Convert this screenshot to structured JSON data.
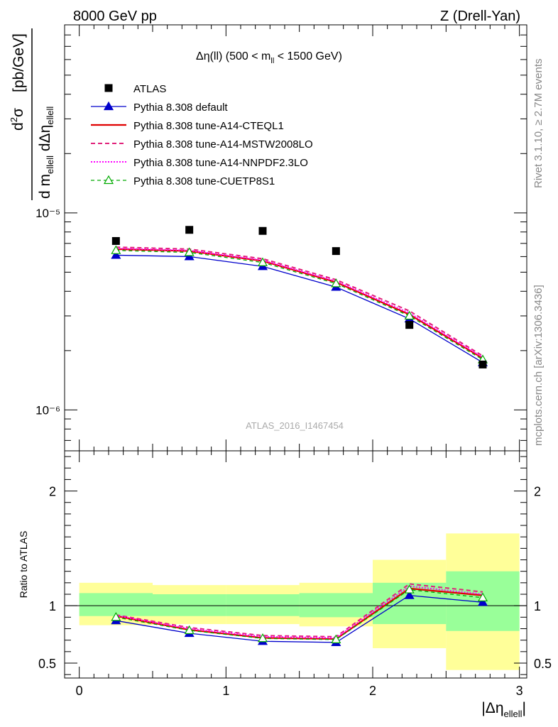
{
  "header": {
    "left": "8000 GeV pp",
    "right": "Z (Drell-Yan)"
  },
  "side": {
    "rivet": "Rivet 3.1.10, ≥ 2.7M events",
    "mcplots": "mcplots.cern.ch [arXiv:1306.3436]"
  },
  "watermark": "ATLAS_2016_I1467454",
  "colors": {
    "atlas": "#000000",
    "default": "#0000cc",
    "cteql1": "#e00000",
    "mstw": "#e0207a",
    "nnpdf": "#ff00ff",
    "cuetp8s1": "#00aa00",
    "band_outer": "#ffff99",
    "band_inner": "#99ff99"
  },
  "chart_data": [
    {
      "type": "scatter",
      "panel": "main",
      "title": "Δη(ll) (500 < m_ll < 1500 GeV)",
      "ylabel": "d²σ / d m_ellell dΔη_ellell [pb/GeV]",
      "yscale": "log",
      "ylim": [
        6.2e-07,
        9e-05
      ],
      "xlim": [
        -0.1,
        3.05
      ],
      "ytick_labels": [
        "10⁻⁵",
        "10⁻⁶"
      ],
      "legend_position": "top-left",
      "bins": [
        [
          0,
          0.5
        ],
        [
          0.5,
          1.0
        ],
        [
          1.0,
          1.5
        ],
        [
          1.5,
          2.0
        ],
        [
          2.0,
          2.5
        ],
        [
          2.5,
          3.0
        ]
      ],
      "x": [
        0.25,
        0.75,
        1.25,
        1.75,
        2.25,
        2.75
      ],
      "series": [
        {
          "name": "ATLAS",
          "key": "atlas",
          "values": [
            7.2e-06,
            8.2e-06,
            8.1e-06,
            6.4e-06,
            2.7e-06,
            1.7e-06
          ]
        },
        {
          "name": "Pythia 8.308 default",
          "key": "default",
          "values": [
            6.1e-06,
            6e-06,
            5.35e-06,
            4.2e-06,
            2.9e-06,
            1.74e-06
          ]
        },
        {
          "name": "Pythia 8.308 tune-A14-CTEQL1",
          "key": "cteql1",
          "values": [
            6.55e-06,
            6.4e-06,
            5.7e-06,
            4.45e-06,
            3.05e-06,
            1.83e-06
          ]
        },
        {
          "name": "Pythia 8.308 tune-A14-MSTW2008LO",
          "key": "mstw",
          "values": [
            6.7e-06,
            6.55e-06,
            5.85e-06,
            4.58e-06,
            3.18e-06,
            1.88e-06
          ]
        },
        {
          "name": "Pythia 8.308 tune-A14-NNPDF2.3LO",
          "key": "nnpdf",
          "values": [
            6.6e-06,
            6.45e-06,
            5.75e-06,
            4.5e-06,
            3.1e-06,
            1.85e-06
          ]
        },
        {
          "name": "Pythia 8.308 tune-CUETP8S1",
          "key": "cuetp8s1",
          "values": [
            6.45e-06,
            6.3e-06,
            5.6e-06,
            4.38e-06,
            3e-06,
            1.8e-06
          ]
        }
      ]
    },
    {
      "type": "line",
      "panel": "ratio",
      "ylabel": "Ratio to ATLAS",
      "xlabel": "|Δη_ellell|",
      "ylim": [
        0.37,
        2.35
      ],
      "xlim": [
        -0.1,
        3.05
      ],
      "xticks": [
        0,
        1,
        2,
        3
      ],
      "yticks": [
        0.5,
        1,
        2
      ],
      "ytick_labels": [
        "0.5",
        "1",
        "2"
      ],
      "band_outer": [
        [
          0.83,
          1.2
        ],
        [
          0.84,
          1.18
        ],
        [
          0.84,
          1.18
        ],
        [
          0.82,
          1.2
        ],
        [
          0.63,
          1.4
        ],
        [
          0.44,
          1.63
        ]
      ],
      "band_inner": [
        [
          0.91,
          1.11
        ],
        [
          0.91,
          1.1
        ],
        [
          0.91,
          1.1
        ],
        [
          0.9,
          1.11
        ],
        [
          0.84,
          1.2
        ],
        [
          0.78,
          1.3
        ]
      ],
      "x": [
        0.25,
        0.75,
        1.25,
        1.75,
        2.25,
        2.75
      ],
      "series": [
        {
          "key": "default",
          "values": [
            0.87,
            0.76,
            0.69,
            0.68,
            1.09,
            1.03
          ]
        },
        {
          "key": "cteql1",
          "values": [
            0.91,
            0.79,
            0.72,
            0.71,
            1.15,
            1.09
          ]
        },
        {
          "key": "mstw",
          "values": [
            0.92,
            0.81,
            0.74,
            0.73,
            1.19,
            1.12
          ]
        },
        {
          "key": "nnpdf",
          "values": [
            0.915,
            0.8,
            0.73,
            0.72,
            1.17,
            1.1
          ]
        },
        {
          "key": "cuetp8s1",
          "values": [
            0.9,
            0.785,
            0.715,
            0.705,
            1.14,
            1.07
          ]
        }
      ]
    }
  ]
}
